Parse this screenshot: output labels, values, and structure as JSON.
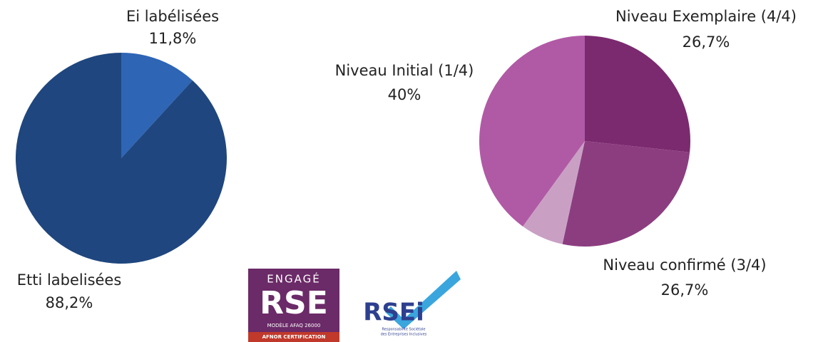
{
  "chart_data": [
    {
      "type": "pie",
      "categories": [
        "Ei labélisées",
        "Etti labelisées"
      ],
      "values": [
        11.8,
        88.2
      ],
      "value_labels": [
        "11,8%",
        "88,2%"
      ],
      "colors": [
        "#2e65b5",
        "#1f467e"
      ]
    },
    {
      "type": "pie",
      "categories": [
        "Niveau Exemplaire (4/4)",
        "Niveau confirmé (3/4)",
        null,
        "Niveau Initial (1/4)"
      ],
      "values": [
        26.7,
        26.7,
        6.6,
        40
      ],
      "value_labels": [
        "26,7%",
        "26,7%",
        null,
        "40%"
      ],
      "colors": [
        "#7b2a6f",
        "#8c3d80",
        "#c9a0c4",
        "#b05aa5"
      ]
    }
  ],
  "logos": [
    {
      "lines": [
        "ENGAGÉ",
        "RSE",
        "MODÈLE AFAQ 26000",
        "AFNOR CERTIFICATION"
      ]
    },
    {
      "lines": [
        "RSEi",
        "Responsabilité Sociétale",
        "des Entreprises Inclusives"
      ]
    }
  ]
}
